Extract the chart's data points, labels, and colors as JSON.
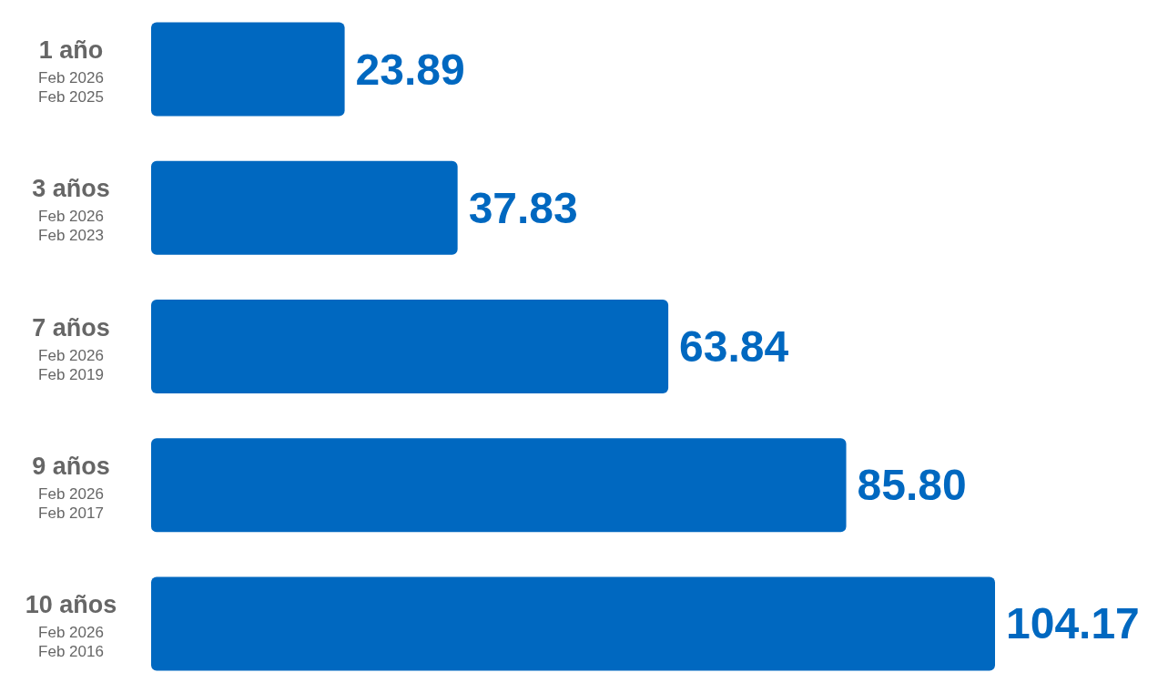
{
  "chart_data": {
    "type": "bar",
    "orientation": "horizontal",
    "categories": [
      "1 año\nFeb 2026\nFeb 2025",
      "3 años\nFeb 2026\nFeb 2023",
      "7 años\nFeb 2026\nFeb 2019",
      "9 años\nFeb 2026\nFeb 2017",
      "10 años\nFeb 2026\nFeb 2016"
    ],
    "values": [
      23.89,
      37.83,
      63.84,
      85.8,
      104.17
    ],
    "value_labels": [
      "23.89",
      "37.83",
      "63.84",
      "85.80",
      "104.17"
    ],
    "color": "#0068c0"
  }
}
